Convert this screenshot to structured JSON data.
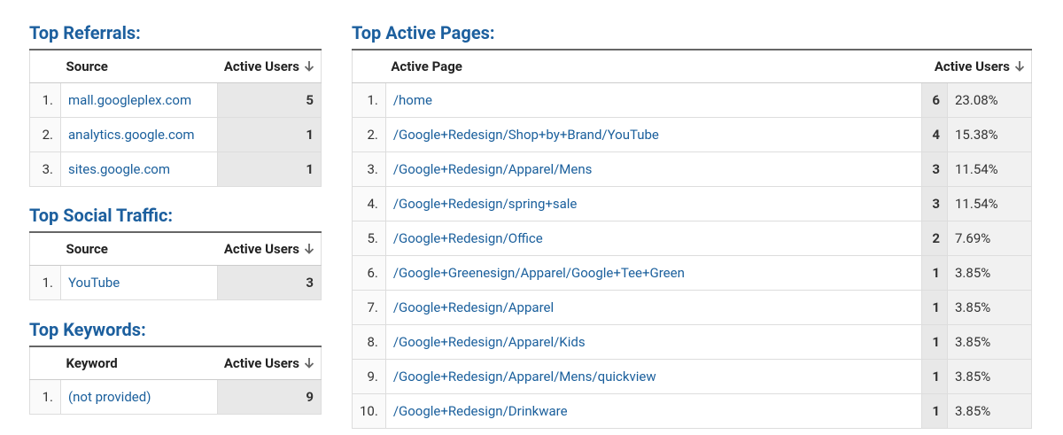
{
  "referrals": {
    "title": "Top Referrals:",
    "headers": [
      "Source",
      "Active Users"
    ],
    "rows": [
      [
        "1.",
        "mall.googleplex.com",
        5
      ],
      [
        "2.",
        "analytics.google.com",
        1
      ],
      [
        "3.",
        "sites.google.com",
        1
      ]
    ]
  },
  "social": {
    "title": "Top Social Traffic:",
    "headers": [
      "Source",
      "Active Users"
    ],
    "rows": [
      [
        "1.",
        "YouTube",
        3
      ]
    ]
  },
  "keywords": {
    "title": "Top Keywords:",
    "headers": [
      "Keyword",
      "Active Users"
    ],
    "rows": [
      [
        "1.",
        "(not provided)",
        9
      ]
    ]
  },
  "pages": {
    "title": "Top Active Pages:",
    "headers": [
      "Active Page",
      "Active Users"
    ],
    "rows": [
      [
        "1.",
        "/home",
        6,
        "23.08%"
      ],
      [
        "2.",
        "/Google+Redesign/Shop+by+Brand/YouTube",
        4,
        "15.38%"
      ],
      [
        "3.",
        "/Google+Redesign/Apparel/Mens",
        3,
        "11.54%"
      ],
      [
        "4.",
        "/Google+Redesign/spring+sale",
        3,
        "11.54%"
      ],
      [
        "5.",
        "/Google+Redesign/Office",
        2,
        "7.69%"
      ],
      [
        "6.",
        "/Google+Greenesign/Apparel/Google+Tee+Green",
        1,
        "3.85%"
      ],
      [
        "7.",
        "/Google+Redesign/Apparel",
        1,
        "3.85%"
      ],
      [
        "8.",
        "/Google+Redesign/Apparel/Kids",
        1,
        "3.85%"
      ],
      [
        "9.",
        "/Google+Redesign/Apparel/Mens/quickview",
        1,
        "3.85%"
      ],
      [
        "10.",
        "/Google+Redesign/Drinkware",
        1,
        "3.85%"
      ]
    ]
  }
}
